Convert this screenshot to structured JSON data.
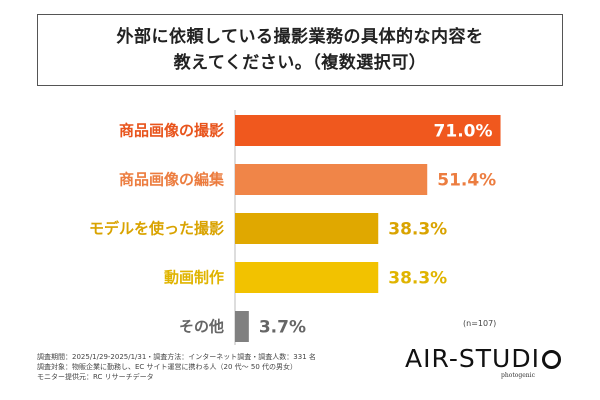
{
  "title": {
    "line1": "外部に依頼している撮影業務の具体的な内容を",
    "line2": "教えてください。（複数選択可）"
  },
  "chart_data": {
    "type": "bar",
    "orientation": "horizontal",
    "categories": [
      "商品画像の撮影",
      "商品画像の編集",
      "モデルを使った撮影",
      "動画制作",
      "その他"
    ],
    "values": [
      71.0,
      51.4,
      38.3,
      38.3,
      3.7
    ],
    "value_labels": [
      "71.0%",
      "51.4%",
      "38.3%",
      "38.3%",
      "3.7%"
    ],
    "unit": "%",
    "xlim": [
      0,
      100
    ],
    "bar_colors": [
      "#f0581e",
      "#f08548",
      "#e0a800",
      "#f2c200",
      "#808080"
    ],
    "label_colors": [
      "#e8541c",
      "#ec7d40",
      "#d9a300",
      "#e0b400",
      "#666666"
    ],
    "value_inside": [
      true,
      false,
      false,
      false,
      false
    ],
    "value_inside_color": "#ffffff",
    "grid": false,
    "note": "(n=107)"
  },
  "footnotes": [
    "調査期間：2025/1/29-2025/1/31・調査方法：インターネット調査・調査人数：331 名",
    "調査対象：物販企業に勤務し、EC サイト運営に携わる人（20 代〜 50 代の男女）",
    "モニター提供元：RC リサーチデータ"
  ],
  "logo": {
    "left": "AIR-STUDI",
    "sub": "photogenic"
  }
}
